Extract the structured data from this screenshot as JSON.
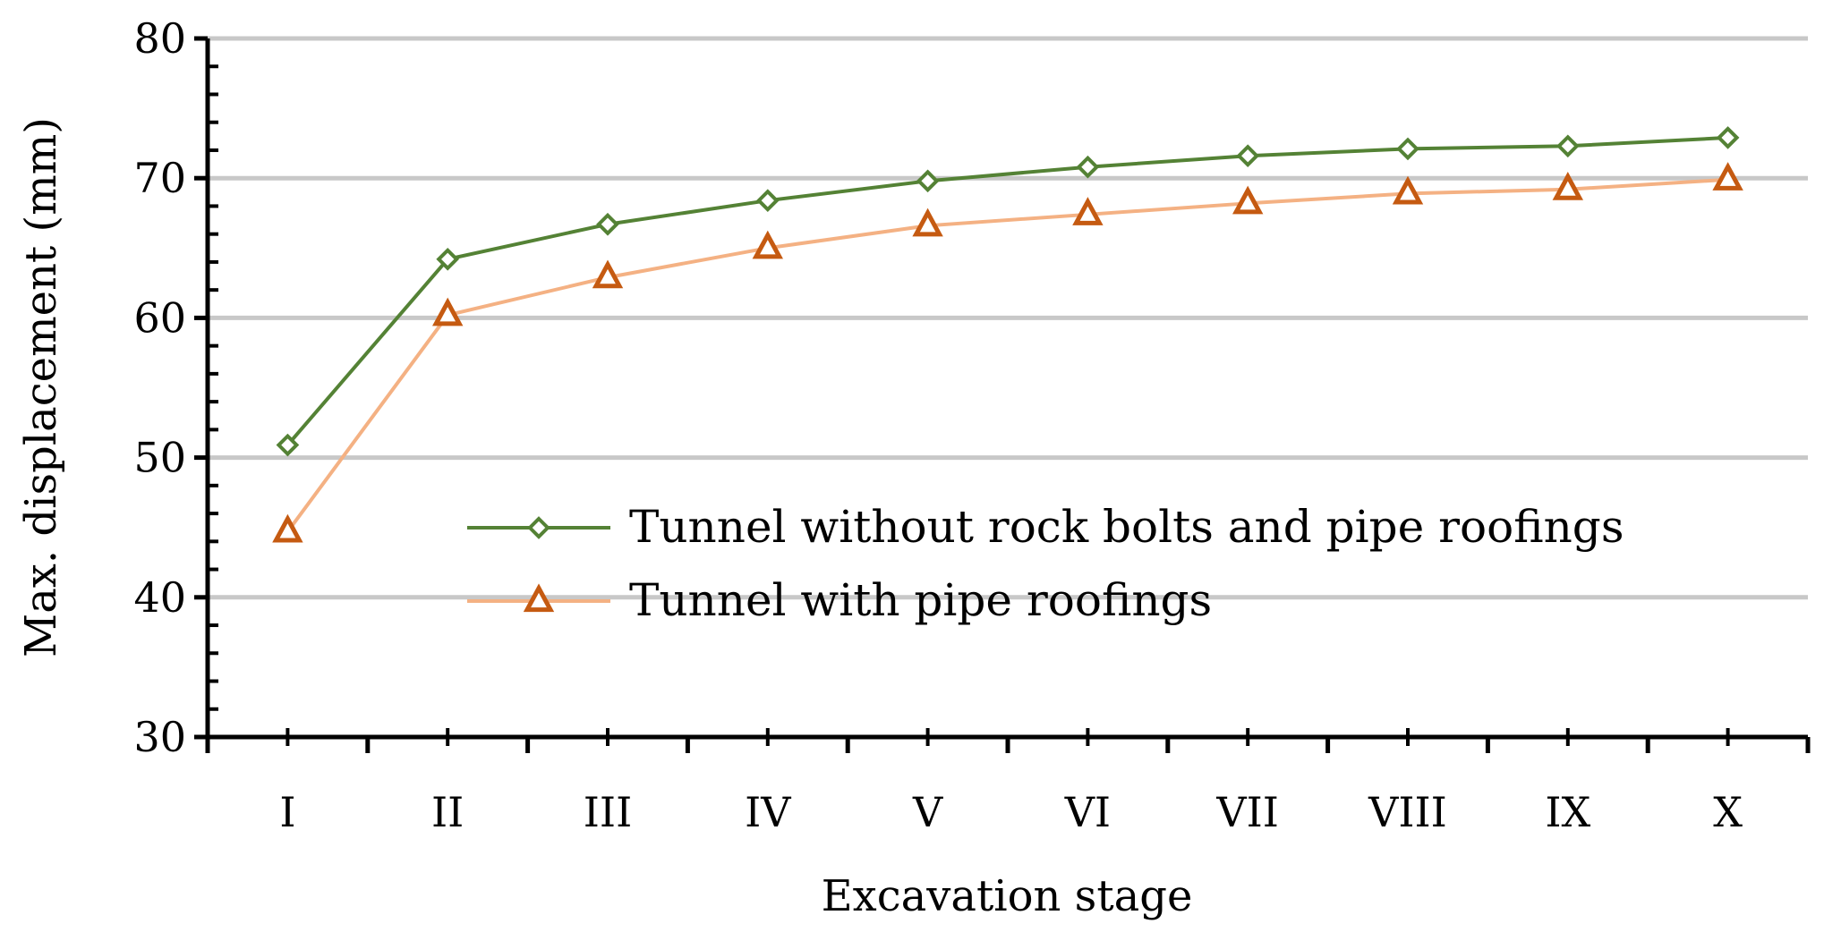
{
  "chart_data": {
    "type": "line",
    "title": "",
    "xlabel": "Excavation stage",
    "ylabel": "Max. displacement (mm)",
    "categories": [
      "I",
      "II",
      "III",
      "IV",
      "V",
      "VI",
      "VII",
      "VIII",
      "IX",
      "X"
    ],
    "ylim": [
      30,
      80
    ],
    "yticks": [
      30,
      40,
      50,
      60,
      70,
      80
    ],
    "grid": true,
    "legend_position": "center-right",
    "series": [
      {
        "name": "Tunnel without rock bolts and pipe roofings",
        "marker": "diamond",
        "line_color": "#548235",
        "marker_color": "#548235",
        "values": [
          50.9,
          64.2,
          66.7,
          68.4,
          69.8,
          70.8,
          71.6,
          72.1,
          72.3,
          72.9
        ]
      },
      {
        "name": "Tunnel with pipe roofings",
        "marker": "triangle",
        "line_color": "#F4B183",
        "marker_color": "#C55A11",
        "values": [
          44.7,
          60.2,
          62.9,
          65.0,
          66.6,
          67.4,
          68.2,
          68.9,
          69.2,
          69.9
        ]
      }
    ],
    "gridline_color": "#C8C8C8"
  }
}
